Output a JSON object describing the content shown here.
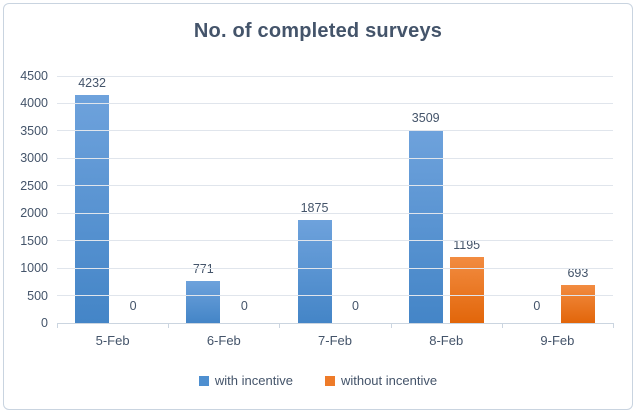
{
  "chart_data": {
    "type": "bar",
    "title": "No. of completed surveys",
    "categories": [
      "5-Feb",
      "6-Feb",
      "7-Feb",
      "8-Feb",
      "9-Feb"
    ],
    "series": [
      {
        "name": "with incentive",
        "values": [
          4232,
          771,
          1875,
          3509,
          0
        ],
        "color_top": "#6EA2DC",
        "color_bottom": "#4485C7",
        "legend_color": "#4E8FD0"
      },
      {
        "name": "without incentive",
        "values": [
          0,
          0,
          0,
          1195,
          693
        ],
        "color_top": "#F28C41",
        "color_bottom": "#E2660A",
        "legend_color": "#EE7B29"
      }
    ],
    "y_axis": {
      "min": 0,
      "max": 4500,
      "step": 500,
      "ticks": [
        "0",
        "500",
        "1000",
        "1500",
        "2000",
        "2500",
        "3000",
        "3500",
        "4000",
        "4500"
      ]
    },
    "grid": true,
    "data_labels": true,
    "legend_position": "bottom",
    "text_color": "#44546A",
    "gridline_color": "#E0E5EC",
    "axis_line_color": "#CBD5E0",
    "frame_border_color": "#C9D4E0"
  }
}
